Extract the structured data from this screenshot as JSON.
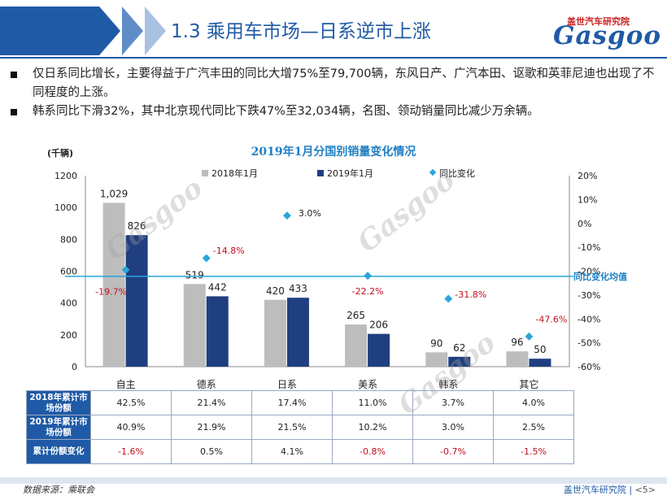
{
  "header": {
    "title": "1.3 乘用车市场—日系逆市上涨",
    "logo_cn": "盖世汽车研究院",
    "logo_en": "Gasgoo"
  },
  "bullets": [
    "仅日系同比增长，主要得益于广汽丰田的同比大增75%至79,700辆，东风日产、广汽本田、讴歌和英菲尼迪也出现了不同程度的上涨。",
    "韩系同比下滑32%，其中北京现代同比下跌47%至32,034辆，名图、领动销量同比减少万余辆。"
  ],
  "watermark": {
    "cn": "盖世汽车",
    "en": "Gasgoo"
  },
  "chart_data": {
    "type": "bar",
    "title": "2019年1月分国别销量变化情况",
    "unit_label": "(千辆)",
    "categories": [
      "自主",
      "德系",
      "日系",
      "美系",
      "韩系",
      "其它"
    ],
    "series": [
      {
        "name": "2018年1月",
        "values": [
          1029,
          519,
          420,
          265,
          90,
          96
        ],
        "labels": [
          "1,029",
          "519",
          "420",
          "265",
          "90",
          "96"
        ],
        "color": "#bdbdbd"
      },
      {
        "name": "2019年1月",
        "values": [
          826,
          442,
          433,
          206,
          62,
          50
        ],
        "labels": [
          "826",
          "442",
          "433",
          "206",
          "62",
          "50"
        ],
        "color": "#1f3f80"
      }
    ],
    "yoy": {
      "name": "同比变化",
      "values": [
        -19.7,
        -14.8,
        3.0,
        -22.2,
        -31.8,
        -47.6
      ],
      "labels": [
        "-19.7%",
        "-14.8%",
        "3.0%",
        "-22.2%",
        "-31.8%",
        "-47.6%"
      ],
      "color": "#2aa6d9"
    },
    "average_line": {
      "label": "同比变化均值",
      "color": "#2aa6d9"
    },
    "y_left": {
      "min": 0,
      "max": 1200,
      "ticks": [
        "0",
        "200",
        "400",
        "600",
        "800",
        "1000",
        "1200"
      ]
    },
    "y_right": {
      "min": -60,
      "max": 20,
      "ticks": [
        "-60%",
        "-50%",
        "-40%",
        "-30%",
        "-20%",
        "-10%",
        "0%",
        "10%",
        "20%"
      ]
    },
    "legend_position": "top"
  },
  "table": {
    "row_headers": [
      "2018年累计市场份额",
      "2019年累计市场份额",
      "累计份额变化"
    ],
    "rows": [
      [
        "42.5%",
        "21.4%",
        "17.4%",
        "11.0%",
        "3.7%",
        "4.0%"
      ],
      [
        "40.9%",
        "21.9%",
        "21.5%",
        "10.2%",
        "3.0%",
        "2.5%"
      ],
      [
        "-1.6%",
        "0.5%",
        "4.1%",
        "-0.8%",
        "-0.7%",
        "-1.5%"
      ]
    ]
  },
  "footer": {
    "source": "数据来源：乘联会",
    "org": "盖世汽车研究院",
    "page": "<5>"
  }
}
